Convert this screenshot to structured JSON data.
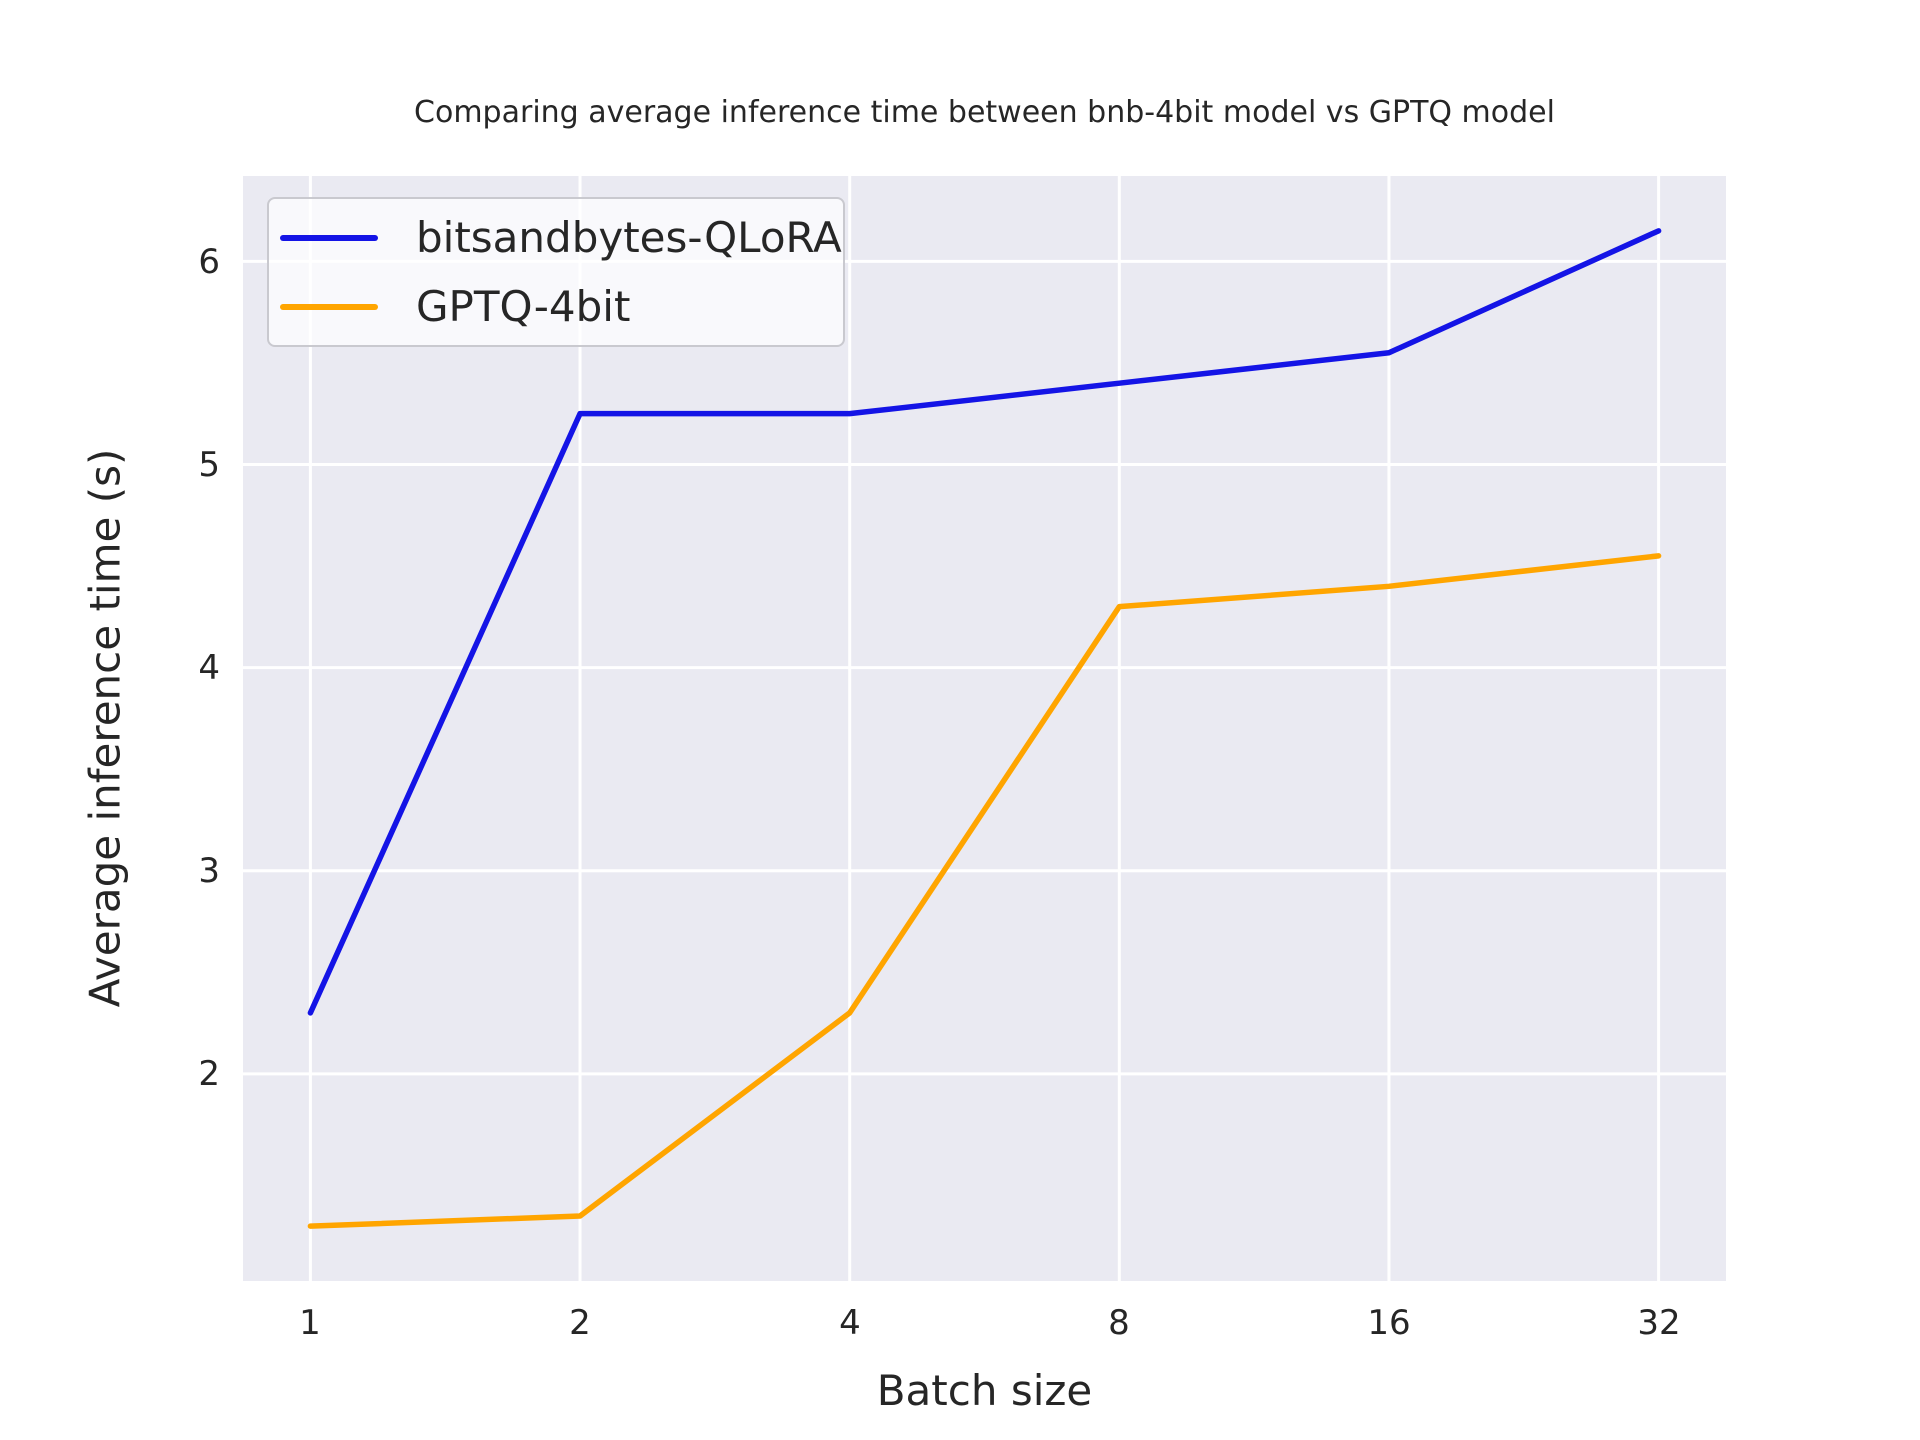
{
  "figure": {
    "title": "Comparing average inference time between bnb-4bit model vs GPTQ model"
  },
  "chart_data": {
    "type": "line",
    "title": "Comparing average inference time between bnb-4bit model vs GPTQ model",
    "xlabel": "Batch size",
    "ylabel": "Average inference time (s)",
    "categories": [
      "1",
      "2",
      "4",
      "8",
      "16",
      "32"
    ],
    "series": [
      {
        "name": "bitsandbytes-QLoRA",
        "color": "#1414e6",
        "values": [
          2.3,
          5.25,
          5.25,
          5.4,
          5.55,
          6.15
        ]
      },
      {
        "name": "GPTQ-4bit",
        "color": "#ffa500",
        "values": [
          1.25,
          1.3,
          2.3,
          4.3,
          4.4,
          4.55
        ]
      }
    ],
    "y_ticks": [
      "2",
      "3",
      "4",
      "5",
      "6"
    ],
    "y_tick_values": [
      2,
      3,
      4,
      5,
      6
    ],
    "xlim": [
      -0.25,
      5.25
    ],
    "ylim": [
      0.98,
      6.42
    ],
    "grid": true,
    "legend_position": "upper left",
    "plot_background": "#eaeaf2",
    "gridline_color": "#ffffff",
    "text_color": "#262626"
  }
}
